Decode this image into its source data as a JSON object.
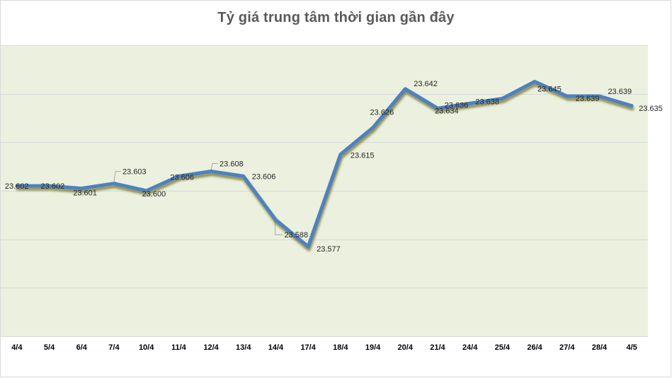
{
  "chart_data": {
    "type": "line",
    "title": "Tỷ giá trung tâm thời gian gần đây",
    "xlabel": "",
    "ylabel": "",
    "categories": [
      "4/4",
      "5/4",
      "6/4",
      "7/4",
      "10/4",
      "11/4",
      "12/4",
      "13/4",
      "14/4",
      "17/4",
      "18/4",
      "19/4",
      "20/4",
      "21/4",
      "24/4",
      "25/4",
      "26/4",
      "27/4",
      "28/4",
      "4/5"
    ],
    "series": [
      {
        "name": "Tỷ giá trung tâm",
        "values": [
          23.602,
          23.602,
          23.601,
          23.603,
          23.6,
          23.606,
          23.608,
          23.606,
          23.588,
          23.577,
          23.615,
          23.626,
          23.642,
          23.634,
          23.636,
          23.638,
          23.645,
          23.639,
          23.639,
          23.635
        ],
        "labels": [
          "23.602",
          "23.602",
          "23.601",
          "23.603",
          "23.600",
          "23.606",
          "23.608",
          "23.606",
          "23.588",
          "23.577",
          "23.615",
          "23.626",
          "23.642",
          "23.634",
          "23.636",
          "23.638",
          "23.645",
          "23.639",
          "23.639",
          "23.635"
        ],
        "color": "#4f81bd"
      }
    ],
    "ylim": [
      23.54,
      23.66
    ],
    "ygrid_step": 0.02,
    "grid": true,
    "y_axis_visible": false,
    "legend": "none",
    "colors": {
      "plot_background": "#ebf1de",
      "gridline": "#d9d9d9",
      "line": "#4f81bd",
      "shadow": "#7f7f3f",
      "title": "#595959"
    }
  }
}
